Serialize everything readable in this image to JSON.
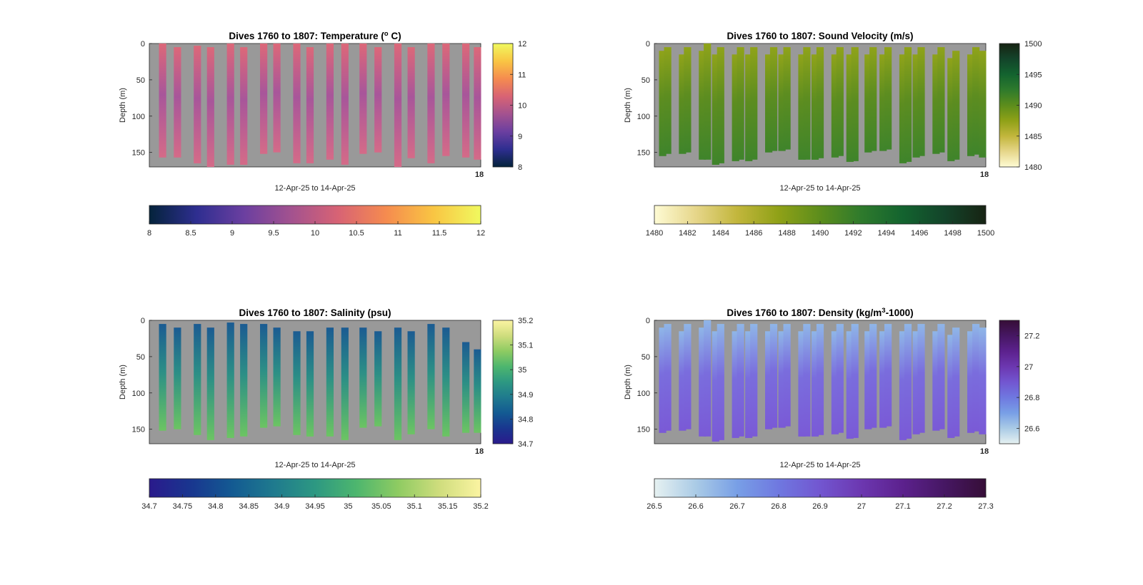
{
  "figure_background": "#ffffff",
  "axes_background": "#999999",
  "chart_data": [
    {
      "type": "heatmap",
      "title": "Dives 1760 to 1807: Temperature (°C)",
      "title_parts": [
        "Dives 1760 to 1807: Temperature (",
        "o",
        " C)"
      ],
      "xlabel": "12-Apr-25 to 14-Apr-25",
      "ylabel": "Depth (m)",
      "y_ticks": [
        0,
        50,
        100,
        150
      ],
      "ylim": [
        0,
        170
      ],
      "x_tick_label": "18",
      "colorbar": {
        "name": "thermal",
        "range": [
          8,
          12
        ],
        "ticks": [
          8,
          9,
          10,
          11,
          12
        ],
        "horizontal_ticks": [
          "8",
          "8.5",
          "9",
          "9.5",
          "10",
          "10.5",
          "11",
          "11.5",
          "12"
        ],
        "stops": [
          "#04233b",
          "#2e2e90",
          "#6b3fa0",
          "#a3528f",
          "#d86374",
          "#f58b4f",
          "#f9c543",
          "#f0f95f"
        ]
      },
      "profile_color_top": "#dc6879",
      "profile_color_mid": "#a8569a",
      "profile_color_bottom": "#d46b88",
      "dives": [
        {
          "x": 0.04,
          "top": 0,
          "bottom": 157
        },
        {
          "x": 0.085,
          "top": 5,
          "bottom": 157
        },
        {
          "x": 0.145,
          "top": 3,
          "bottom": 165
        },
        {
          "x": 0.185,
          "top": 5,
          "bottom": 170
        },
        {
          "x": 0.245,
          "top": 0,
          "bottom": 167
        },
        {
          "x": 0.285,
          "top": 5,
          "bottom": 167
        },
        {
          "x": 0.345,
          "top": 0,
          "bottom": 152
        },
        {
          "x": 0.385,
          "top": 0,
          "bottom": 150
        },
        {
          "x": 0.445,
          "top": 0,
          "bottom": 165
        },
        {
          "x": 0.485,
          "top": 5,
          "bottom": 165
        },
        {
          "x": 0.545,
          "top": 0,
          "bottom": 160
        },
        {
          "x": 0.59,
          "top": 0,
          "bottom": 167
        },
        {
          "x": 0.645,
          "top": 0,
          "bottom": 152
        },
        {
          "x": 0.69,
          "top": 5,
          "bottom": 150
        },
        {
          "x": 0.75,
          "top": 0,
          "bottom": 170
        },
        {
          "x": 0.79,
          "top": 5,
          "bottom": 158
        },
        {
          "x": 0.85,
          "top": 0,
          "bottom": 165
        },
        {
          "x": 0.895,
          "top": 0,
          "bottom": 155
        },
        {
          "x": 0.955,
          "top": 0,
          "bottom": 157
        },
        {
          "x": 0.99,
          "top": 5,
          "bottom": 160
        }
      ]
    },
    {
      "type": "heatmap",
      "title": "Dives 1760 to 1807: Sound Velocity (m/s)",
      "title_parts": [
        "Dives 1760 to 1807: Sound Velocity (m/s)"
      ],
      "xlabel": "12-Apr-25 to 14-Apr-25",
      "ylabel": "Depth (m)",
      "y_ticks": [
        0,
        50,
        100,
        150
      ],
      "ylim": [
        0,
        170
      ],
      "x_tick_label": "18",
      "colorbar": {
        "name": "speed",
        "range": [
          1480,
          1500
        ],
        "ticks": [
          1480,
          1485,
          1490,
          1495,
          1500
        ],
        "horizontal_ticks": [
          "1480",
          "1482",
          "1484",
          "1486",
          "1488",
          "1490",
          "1492",
          "1494",
          "1496",
          "1498",
          "1500"
        ],
        "stops": [
          "#fefbd4",
          "#e6d68a",
          "#c2b63c",
          "#8fa117",
          "#5c8d1c",
          "#2e7a2c",
          "#13632f",
          "#13442a",
          "#172313"
        ]
      },
      "profile_color_top": "#8fa31a",
      "profile_color_mid": "#5d8d20",
      "profile_color_bottom": "#3f842b",
      "dives": [
        {
          "x": 0.025,
          "top": 10,
          "bottom": 155
        },
        {
          "x": 0.04,
          "top": 5,
          "bottom": 152
        },
        {
          "x": 0.085,
          "top": 15,
          "bottom": 152
        },
        {
          "x": 0.1,
          "top": 5,
          "bottom": 150
        },
        {
          "x": 0.145,
          "top": 10,
          "bottom": 160
        },
        {
          "x": 0.16,
          "top": 0,
          "bottom": 160
        },
        {
          "x": 0.185,
          "top": 15,
          "bottom": 167
        },
        {
          "x": 0.2,
          "top": 5,
          "bottom": 165
        },
        {
          "x": 0.245,
          "top": 15,
          "bottom": 162
        },
        {
          "x": 0.26,
          "top": 5,
          "bottom": 160
        },
        {
          "x": 0.285,
          "top": 15,
          "bottom": 162
        },
        {
          "x": 0.3,
          "top": 5,
          "bottom": 160
        },
        {
          "x": 0.345,
          "top": 15,
          "bottom": 150
        },
        {
          "x": 0.36,
          "top": 5,
          "bottom": 148
        },
        {
          "x": 0.385,
          "top": 15,
          "bottom": 148
        },
        {
          "x": 0.4,
          "top": 5,
          "bottom": 146
        },
        {
          "x": 0.445,
          "top": 15,
          "bottom": 160
        },
        {
          "x": 0.46,
          "top": 5,
          "bottom": 160
        },
        {
          "x": 0.485,
          "top": 15,
          "bottom": 160
        },
        {
          "x": 0.5,
          "top": 5,
          "bottom": 158
        },
        {
          "x": 0.545,
          "top": 15,
          "bottom": 157
        },
        {
          "x": 0.56,
          "top": 5,
          "bottom": 155
        },
        {
          "x": 0.59,
          "top": 15,
          "bottom": 163
        },
        {
          "x": 0.605,
          "top": 5,
          "bottom": 162
        },
        {
          "x": 0.645,
          "top": 15,
          "bottom": 150
        },
        {
          "x": 0.66,
          "top": 5,
          "bottom": 148
        },
        {
          "x": 0.69,
          "top": 15,
          "bottom": 148
        },
        {
          "x": 0.705,
          "top": 5,
          "bottom": 146
        },
        {
          "x": 0.75,
          "top": 15,
          "bottom": 165
        },
        {
          "x": 0.765,
          "top": 5,
          "bottom": 163
        },
        {
          "x": 0.79,
          "top": 15,
          "bottom": 157
        },
        {
          "x": 0.805,
          "top": 5,
          "bottom": 155
        },
        {
          "x": 0.85,
          "top": 15,
          "bottom": 152
        },
        {
          "x": 0.865,
          "top": 5,
          "bottom": 150
        },
        {
          "x": 0.895,
          "top": 20,
          "bottom": 162
        },
        {
          "x": 0.91,
          "top": 10,
          "bottom": 160
        },
        {
          "x": 0.955,
          "top": 15,
          "bottom": 155
        },
        {
          "x": 0.97,
          "top": 5,
          "bottom": 153
        },
        {
          "x": 0.99,
          "top": 10,
          "bottom": 157
        }
      ]
    },
    {
      "type": "heatmap",
      "title": "Dives 1760 to 1807: Salinity (psu)",
      "title_parts": [
        "Dives 1760 to 1807: Salinity (psu)"
      ],
      "xlabel": "12-Apr-25 to 14-Apr-25",
      "ylabel": "Depth (m)",
      "y_ticks": [
        0,
        50,
        100,
        150
      ],
      "ylim": [
        0,
        170
      ],
      "x_tick_label": "18",
      "colorbar": {
        "name": "haline",
        "range": [
          34.7,
          35.2
        ],
        "ticks": [
          34.7,
          34.8,
          34.9,
          35,
          35.1,
          35.2
        ],
        "horizontal_ticks": [
          "34.7",
          "34.75",
          "34.8",
          "34.85",
          "34.9",
          "34.95",
          "35",
          "35.05",
          "35.1",
          "35.15",
          "35.2"
        ],
        "stops": [
          "#2a1a8c",
          "#19368f",
          "#135a92",
          "#1f7a8e",
          "#2d9882",
          "#4db66e",
          "#8ecb62",
          "#cfdd7d",
          "#fbf4a2"
        ]
      },
      "profile_color_top": "#1b5b92",
      "profile_color_mid": "#2c8f86",
      "profile_color_bottom": "#6cc463",
      "dives": [
        {
          "x": 0.04,
          "top": 5,
          "bottom": 152
        },
        {
          "x": 0.085,
          "top": 10,
          "bottom": 150
        },
        {
          "x": 0.145,
          "top": 5,
          "bottom": 158
        },
        {
          "x": 0.185,
          "top": 10,
          "bottom": 165
        },
        {
          "x": 0.245,
          "top": 3,
          "bottom": 162
        },
        {
          "x": 0.285,
          "top": 5,
          "bottom": 160
        },
        {
          "x": 0.345,
          "top": 5,
          "bottom": 148
        },
        {
          "x": 0.385,
          "top": 10,
          "bottom": 146
        },
        {
          "x": 0.445,
          "top": 15,
          "bottom": 158
        },
        {
          "x": 0.485,
          "top": 15,
          "bottom": 160
        },
        {
          "x": 0.545,
          "top": 10,
          "bottom": 160
        },
        {
          "x": 0.59,
          "top": 10,
          "bottom": 165
        },
        {
          "x": 0.645,
          "top": 10,
          "bottom": 148
        },
        {
          "x": 0.69,
          "top": 15,
          "bottom": 146
        },
        {
          "x": 0.75,
          "top": 10,
          "bottom": 165
        },
        {
          "x": 0.79,
          "top": 15,
          "bottom": 157
        },
        {
          "x": 0.85,
          "top": 5,
          "bottom": 150
        },
        {
          "x": 0.895,
          "top": 10,
          "bottom": 160
        },
        {
          "x": 0.955,
          "top": 30,
          "bottom": 155
        },
        {
          "x": 0.99,
          "top": 40,
          "bottom": 155
        }
      ]
    },
    {
      "type": "heatmap",
      "title": "Dives 1760 to 1807: Density (kg/m³-1000)",
      "title_parts": [
        "Dives 1760 to 1807: Density (kg/m",
        "3",
        "-1000)"
      ],
      "xlabel": "12-Apr-25 to 14-Apr-25",
      "ylabel": "Depth (m)",
      "y_ticks": [
        0,
        50,
        100,
        150
      ],
      "ylim": [
        0,
        170
      ],
      "x_tick_label": "18",
      "colorbar": {
        "name": "dense",
        "range": [
          26.5,
          27.3
        ],
        "ticks": [
          26.6,
          26.8,
          27,
          27.2
        ],
        "horizontal_ticks": [
          "26.5",
          "26.6",
          "26.7",
          "26.8",
          "26.9",
          "27",
          "27.1",
          "27.2",
          "27.3"
        ],
        "stops": [
          "#e6f1f1",
          "#aacbe6",
          "#789fe6",
          "#6f78e0",
          "#7256d0",
          "#6c37b0",
          "#5c218d",
          "#461763",
          "#360e37"
        ]
      },
      "profile_color_top": "#8fb6e8",
      "profile_color_mid": "#7a6ddd",
      "profile_color_bottom": "#7a5ad6",
      "dives": [
        {
          "x": 0.025,
          "top": 10,
          "bottom": 155
        },
        {
          "x": 0.04,
          "top": 5,
          "bottom": 152
        },
        {
          "x": 0.085,
          "top": 15,
          "bottom": 152
        },
        {
          "x": 0.1,
          "top": 5,
          "bottom": 150
        },
        {
          "x": 0.145,
          "top": 10,
          "bottom": 160
        },
        {
          "x": 0.16,
          "top": 0,
          "bottom": 160
        },
        {
          "x": 0.185,
          "top": 15,
          "bottom": 167
        },
        {
          "x": 0.2,
          "top": 5,
          "bottom": 165
        },
        {
          "x": 0.245,
          "top": 15,
          "bottom": 162
        },
        {
          "x": 0.26,
          "top": 5,
          "bottom": 160
        },
        {
          "x": 0.285,
          "top": 15,
          "bottom": 162
        },
        {
          "x": 0.3,
          "top": 5,
          "bottom": 160
        },
        {
          "x": 0.345,
          "top": 15,
          "bottom": 150
        },
        {
          "x": 0.36,
          "top": 5,
          "bottom": 148
        },
        {
          "x": 0.385,
          "top": 15,
          "bottom": 148
        },
        {
          "x": 0.4,
          "top": 5,
          "bottom": 146
        },
        {
          "x": 0.445,
          "top": 15,
          "bottom": 160
        },
        {
          "x": 0.46,
          "top": 5,
          "bottom": 160
        },
        {
          "x": 0.485,
          "top": 15,
          "bottom": 160
        },
        {
          "x": 0.5,
          "top": 5,
          "bottom": 158
        },
        {
          "x": 0.545,
          "top": 15,
          "bottom": 157
        },
        {
          "x": 0.56,
          "top": 5,
          "bottom": 155
        },
        {
          "x": 0.59,
          "top": 15,
          "bottom": 163
        },
        {
          "x": 0.605,
          "top": 5,
          "bottom": 162
        },
        {
          "x": 0.645,
          "top": 15,
          "bottom": 150
        },
        {
          "x": 0.66,
          "top": 5,
          "bottom": 148
        },
        {
          "x": 0.69,
          "top": 15,
          "bottom": 148
        },
        {
          "x": 0.705,
          "top": 5,
          "bottom": 146
        },
        {
          "x": 0.75,
          "top": 15,
          "bottom": 165
        },
        {
          "x": 0.765,
          "top": 5,
          "bottom": 163
        },
        {
          "x": 0.79,
          "top": 15,
          "bottom": 157
        },
        {
          "x": 0.805,
          "top": 5,
          "bottom": 155
        },
        {
          "x": 0.85,
          "top": 15,
          "bottom": 152
        },
        {
          "x": 0.865,
          "top": 5,
          "bottom": 150
        },
        {
          "x": 0.895,
          "top": 20,
          "bottom": 162
        },
        {
          "x": 0.91,
          "top": 10,
          "bottom": 160
        },
        {
          "x": 0.955,
          "top": 15,
          "bottom": 155
        },
        {
          "x": 0.97,
          "top": 5,
          "bottom": 153
        },
        {
          "x": 0.99,
          "top": 10,
          "bottom": 157
        }
      ]
    }
  ]
}
